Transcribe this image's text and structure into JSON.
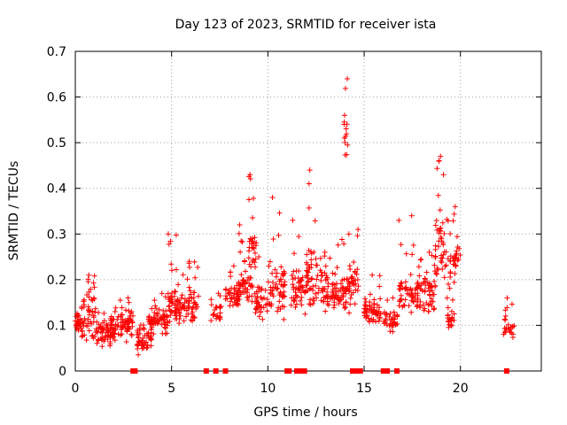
{
  "chart_data": {
    "type": "scatter",
    "title": "Day 123 of 2023, SRMTID for receiver ista",
    "xlabel": "GPS time / hours",
    "ylabel": "SRMTID / TECUs",
    "xlim": [
      0,
      24.2
    ],
    "ylim": [
      0,
      0.7
    ],
    "xticks": [
      0,
      5,
      10,
      15,
      20
    ],
    "xtick_labels": [
      "0",
      "5",
      "10",
      "15",
      "20"
    ],
    "yticks": [
      0,
      0.1,
      0.2,
      0.3,
      0.4,
      0.5,
      0.6,
      0.7
    ],
    "ytick_labels": [
      "0",
      "0.1",
      "0.2",
      "0.3",
      "0.4",
      "0.5",
      "0.6",
      "0.7"
    ],
    "grid": true,
    "marker": "plus",
    "color": "#ff0000",
    "segments": [
      {
        "x0": 0.0,
        "x1": 0.5,
        "base": 0.1,
        "spread": 0.04,
        "peak": 0.14,
        "n": 40
      },
      {
        "x0": 0.4,
        "x1": 1.1,
        "base": 0.12,
        "spread": 0.07,
        "peak": 0.21,
        "n": 45
      },
      {
        "x0": 1.1,
        "x1": 2.1,
        "base": 0.08,
        "spread": 0.04,
        "peak": 0.13,
        "n": 60
      },
      {
        "x0": 1.8,
        "x1": 2.8,
        "base": 0.1,
        "spread": 0.05,
        "peak": 0.16,
        "n": 55
      },
      {
        "x0": 2.7,
        "x1": 3.0,
        "base": 0.1,
        "spread": 0.04,
        "peak": 0.15,
        "n": 20
      },
      {
        "x0": 3.2,
        "x1": 4.0,
        "base": 0.07,
        "spread": 0.04,
        "peak": 0.12,
        "n": 55
      },
      {
        "x0": 3.8,
        "x1": 4.8,
        "base": 0.11,
        "spread": 0.04,
        "peak": 0.17,
        "n": 65
      },
      {
        "x0": 4.8,
        "x1": 5.6,
        "base": 0.14,
        "spread": 0.05,
        "peak": 0.3,
        "n": 60
      },
      {
        "x0": 5.5,
        "x1": 6.4,
        "base": 0.14,
        "spread": 0.05,
        "peak": 0.24,
        "n": 55
      },
      {
        "x0": 7.0,
        "x1": 7.6,
        "base": 0.12,
        "spread": 0.04,
        "peak": 0.17,
        "n": 25
      },
      {
        "x0": 7.8,
        "x1": 8.5,
        "base": 0.16,
        "spread": 0.04,
        "peak": 0.23,
        "n": 45
      },
      {
        "x0": 8.5,
        "x1": 9.2,
        "base": 0.18,
        "spread": 0.07,
        "peak": 0.32,
        "n": 50
      },
      {
        "x0": 9.0,
        "x1": 9.4,
        "base": 0.27,
        "spread": 0.07,
        "peak": 0.43,
        "n": 30
      },
      {
        "x0": 9.3,
        "x1": 10.0,
        "base": 0.15,
        "spread": 0.05,
        "peak": 0.25,
        "n": 40
      },
      {
        "x0": 10.0,
        "x1": 10.9,
        "base": 0.18,
        "spread": 0.08,
        "peak": 0.38,
        "n": 60
      },
      {
        "x0": 11.2,
        "x1": 12.0,
        "base": 0.18,
        "spread": 0.08,
        "peak": 0.33,
        "n": 50
      },
      {
        "x0": 12.0,
        "x1": 12.8,
        "base": 0.2,
        "spread": 0.09,
        "peak": 0.44,
        "n": 55
      },
      {
        "x0": 12.8,
        "x1": 13.6,
        "base": 0.17,
        "spread": 0.05,
        "peak": 0.26,
        "n": 55
      },
      {
        "x0": 13.6,
        "x1": 14.3,
        "base": 0.17,
        "spread": 0.06,
        "peak": 0.3,
        "n": 45
      },
      {
        "x0": 13.95,
        "x1": 14.15,
        "base": 0.5,
        "spread": 0.1,
        "peak": 0.64,
        "n": 14
      },
      {
        "x0": 14.2,
        "x1": 14.7,
        "base": 0.2,
        "spread": 0.07,
        "peak": 0.31,
        "n": 30
      },
      {
        "x0": 15.0,
        "x1": 15.9,
        "base": 0.13,
        "spread": 0.04,
        "peak": 0.21,
        "n": 60
      },
      {
        "x0": 16.0,
        "x1": 16.8,
        "base": 0.11,
        "spread": 0.03,
        "peak": 0.16,
        "n": 35
      },
      {
        "x0": 16.8,
        "x1": 17.8,
        "base": 0.17,
        "spread": 0.06,
        "peak": 0.34,
        "n": 60
      },
      {
        "x0": 17.7,
        "x1": 18.7,
        "base": 0.17,
        "spread": 0.06,
        "peak": 0.26,
        "n": 60
      },
      {
        "x0": 18.7,
        "x1": 19.0,
        "base": 0.3,
        "spread": 0.12,
        "peak": 0.47,
        "n": 25
      },
      {
        "x0": 19.0,
        "x1": 19.5,
        "base": 0.25,
        "spread": 0.1,
        "peak": 0.43,
        "n": 30
      },
      {
        "x0": 19.3,
        "x1": 19.7,
        "base": 0.11,
        "spread": 0.03,
        "peak": 0.16,
        "n": 20
      },
      {
        "x0": 19.6,
        "x1": 20.0,
        "base": 0.24,
        "spread": 0.06,
        "peak": 0.36,
        "n": 25
      },
      {
        "x0": 22.2,
        "x1": 22.8,
        "base": 0.09,
        "spread": 0.03,
        "peak": 0.16,
        "n": 25
      }
    ],
    "flag_markers_x": [
      3.0,
      3.1,
      6.8,
      7.3,
      7.8,
      11.0,
      11.1,
      11.5,
      11.7,
      11.9,
      14.4,
      14.6,
      14.8,
      16.0,
      16.1,
      16.2,
      16.7,
      22.4
    ]
  }
}
